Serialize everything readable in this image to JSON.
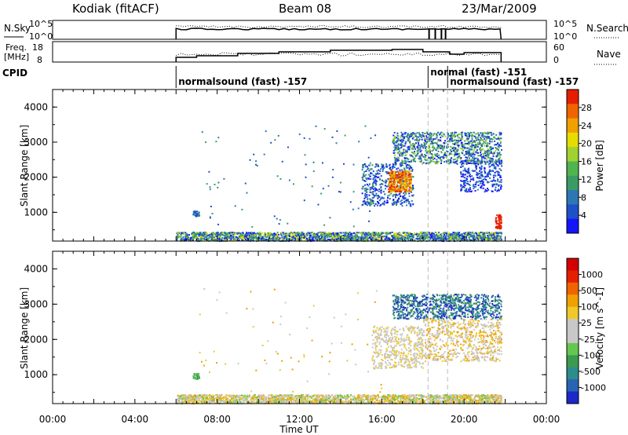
{
  "header": {
    "station": "Kodiak (fitACF)",
    "beam": "Beam 08",
    "date": "23/Mar/2009"
  },
  "nsky_panel": {
    "left_label": "N.Sky",
    "right_label": "N.Search",
    "left_ticks": [
      "10^5",
      "10^0"
    ],
    "right_ticks": [
      "10^5",
      "10^0"
    ]
  },
  "freq_panel": {
    "left_label_line1": "Freq.",
    "left_label_line2": "[MHz]",
    "left_ticks": [
      "18",
      "8"
    ],
    "right_label": "Nave",
    "right_ticks": [
      "60",
      "0"
    ]
  },
  "cpid": {
    "label": "CPID",
    "segments": [
      {
        "text": "normalsound (fast) -157",
        "start_hour": 6.0
      },
      {
        "text": "normal (fast) -151",
        "start_hour": 18.25
      },
      {
        "text": "normalsound (fast) -157",
        "start_hour": 19.2
      }
    ]
  },
  "time_axis": {
    "label": "Time UT",
    "range_hours": [
      0,
      24
    ],
    "ticks": [
      "00:00",
      "04:00",
      "08:00",
      "12:00",
      "16:00",
      "20:00",
      "00:00"
    ]
  },
  "chart_data": [
    {
      "type": "heatmap",
      "name": "power",
      "ylabel": "Slant Range [km]",
      "yticks": [
        "1000",
        "2000",
        "3000",
        "4000"
      ],
      "ylim": [
        180,
        4500
      ],
      "colorbar": {
        "label": "Power [dB]",
        "ticks": [
          "4",
          "8",
          "12",
          "16",
          "20",
          "24",
          "28"
        ],
        "colors": [
          "#1414ff",
          "#1e50c8",
          "#2d78b4",
          "#3c9b64",
          "#50b450",
          "#a0d232",
          "#e6dc00",
          "#f0a000",
          "#f06400",
          "#e61e00"
        ]
      }
    },
    {
      "type": "heatmap",
      "name": "velocity",
      "ylabel": "Slant Range [km]",
      "yticks": [
        "1000",
        "2000",
        "3000",
        "4000"
      ],
      "ylim": [
        180,
        4500
      ],
      "colorbar": {
        "label": "Velocity [m s^-1]",
        "ticks": [
          "1000",
          "500",
          "100",
          "25",
          "-25",
          "-100",
          "-500",
          "-1000"
        ],
        "colors": [
          "#1e28c8",
          "#2864b4",
          "#2d8c8c",
          "#3c9b50",
          "#64c850",
          "#c8c8c8",
          "#c8c8c8",
          "#f0c828",
          "#f0a000",
          "#f06400",
          "#e61e00",
          "#d20000"
        ]
      }
    }
  ]
}
